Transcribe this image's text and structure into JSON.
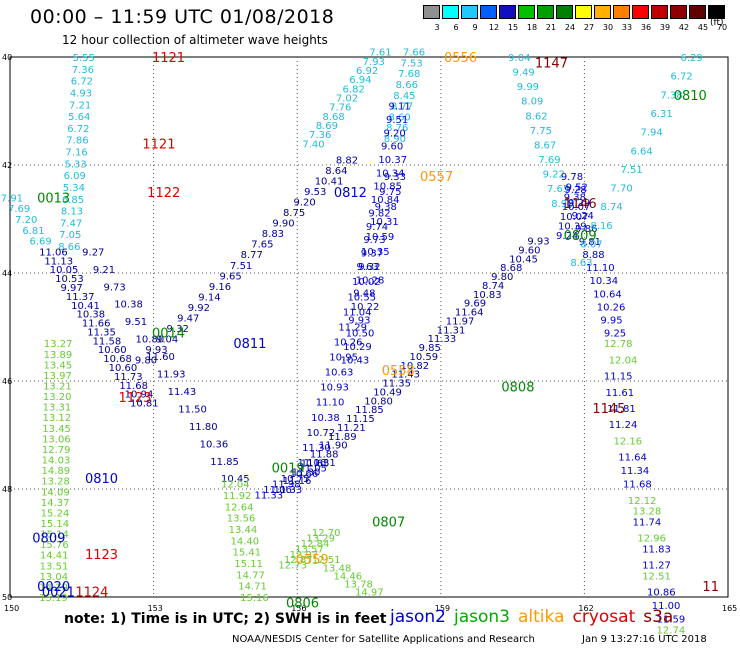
{
  "title": "00:00 – 11:59 UTC 01/08/2018",
  "subtitle": "12 hour collection of altimeter wave heights",
  "scale": {
    "labels": [
      "3",
      "6",
      "9",
      "12",
      "15",
      "18",
      "21",
      "24",
      "27",
      "30",
      "33",
      "36",
      "39",
      "42",
      "45",
      "70"
    ],
    "unit": "(ft)",
    "colors": [
      "#909090",
      "#00ffff",
      "#20c8ff",
      "#0060ff",
      "#1010c0",
      "#00c000",
      "#00a000",
      "#008000",
      "#ffff00",
      "#ffb000",
      "#ff8000",
      "#ff0000",
      "#c00000",
      "#900000",
      "#600000",
      "#000000"
    ]
  },
  "axes": {
    "lon_ticks": [
      "150",
      "153",
      "156",
      "159",
      "162",
      "165"
    ],
    "lat_ticks": [
      "40",
      "42",
      "44",
      "46",
      "48",
      "50"
    ]
  },
  "labels": [
    {
      "t": "1121",
      "lon": 153.3,
      "lat": 40.0,
      "c": "#dd0000"
    },
    {
      "t": "1121",
      "lon": 153.1,
      "lat": 41.6,
      "c": "#dd0000"
    },
    {
      "t": "1122",
      "lon": 153.2,
      "lat": 42.5,
      "c": "#dd0000"
    },
    {
      "t": "0013",
      "lon": 150.9,
      "lat": 42.6,
      "c": "#008800"
    },
    {
      "t": "0014",
      "lon": 153.3,
      "lat": 45.1,
      "c": "#008800"
    },
    {
      "t": "0811",
      "lon": 155.0,
      "lat": 45.3,
      "c": "#0000cc"
    },
    {
      "t": "1123",
      "lon": 152.6,
      "lat": 46.3,
      "c": "#dd0000"
    },
    {
      "t": "0810",
      "lon": 151.9,
      "lat": 47.8,
      "c": "#0000cc"
    },
    {
      "t": "0809",
      "lon": 150.8,
      "lat": 48.9,
      "c": "#0000cc"
    },
    {
      "t": "1123",
      "lon": 151.9,
      "lat": 49.2,
      "c": "#dd0000"
    },
    {
      "t": "0020",
      "lon": 150.9,
      "lat": 49.8,
      "c": "#0000cc"
    },
    {
      "t": "1124",
      "lon": 151.7,
      "lat": 49.9,
      "c": "#dd0000"
    },
    {
      "t": "0021",
      "lon": 151.0,
      "lat": 49.9,
      "c": "#0000cc"
    },
    {
      "t": "0019",
      "lon": 155.8,
      "lat": 47.6,
      "c": "#008800"
    },
    {
      "t": "0806",
      "lon": 156.1,
      "lat": 50.1,
      "c": "#008800"
    },
    {
      "t": "0807",
      "lon": 157.9,
      "lat": 48.6,
      "c": "#008800"
    },
    {
      "t": "0812",
      "lon": 157.1,
      "lat": 42.5,
      "c": "#0000cc"
    },
    {
      "t": "0556",
      "lon": 159.4,
      "lat": 40.0,
      "c": "#ff9900"
    },
    {
      "t": "0557",
      "lon": 158.9,
      "lat": 42.2,
      "c": "#ff9900"
    },
    {
      "t": "0558",
      "lon": 158.1,
      "lat": 45.8,
      "c": "#ff9900"
    },
    {
      "t": "0559",
      "lon": 156.3,
      "lat": 49.3,
      "c": "#ff9900"
    },
    {
      "t": "1147",
      "lon": 161.3,
      "lat": 40.1,
      "c": "#880000"
    },
    {
      "t": "1146",
      "lon": 161.9,
      "lat": 42.7,
      "c": "#880000"
    },
    {
      "t": "1145",
      "lon": 162.5,
      "lat": 46.5,
      "c": "#880000"
    },
    {
      "t": "11",
      "lon": 164.8,
      "lat": 49.8,
      "c": "#880000"
    },
    {
      "t": "0810",
      "lon": 164.2,
      "lat": 40.7,
      "c": "#008800"
    },
    {
      "t": "0809",
      "lon": 161.9,
      "lat": 43.3,
      "c": "#008800"
    },
    {
      "t": "0808",
      "lon": 160.6,
      "lat": 46.1,
      "c": "#008800"
    }
  ],
  "tracks": [
    {
      "c": "#22bbdd",
      "vals": [
        "5.55",
        "7.36",
        "6.72",
        "4.93",
        "7.21",
        "5.64",
        "6.72",
        "7.86",
        "7.16",
        "5.33",
        "6.09",
        "5.34",
        "6.85",
        "8.13",
        "7.47",
        "7.05",
        "8.66"
      ],
      "lon0": 151.6,
      "lat0": 40.0,
      "lon1": 151.3,
      "lat1": 43.5
    },
    {
      "c": "#22bbdd",
      "vals": [
        "7.91",
        "7.69",
        "7.20",
        "6.81",
        "6.69"
      ],
      "lon0": 150.1,
      "lat0": 42.6,
      "lon1": 150.7,
      "lat1": 43.4
    },
    {
      "c": "#000099",
      "vals": [
        "11.06",
        "11.13",
        "10.05",
        "10.53",
        "9.97",
        "11.37",
        "10.41",
        "10.38",
        "11.66",
        "11.35",
        "11.58",
        "10.60",
        "10.68",
        "10.60",
        "11.73",
        "11.68",
        "10.94",
        "10.81"
      ],
      "lon0": 150.9,
      "lat0": 43.6,
      "lon1": 152.8,
      "lat1": 46.4
    },
    {
      "c": "#66cc33",
      "vals": [
        "13.27",
        "13.89",
        "13.45",
        "13.97",
        "13.21",
        "13.20",
        "13.31",
        "13.12",
        "13.45",
        "13.06",
        "12.79",
        "14.03",
        "14.89",
        "13.28",
        "14.09",
        "14.37",
        "15.24",
        "15.14",
        "15.14",
        "15.76",
        "14.41",
        "13.51",
        "13.04",
        "14.19",
        "15.19"
      ],
      "lon0": 151.0,
      "lat0": 45.3,
      "lon1": 150.9,
      "lat1": 50.0
    },
    {
      "c": "#000099",
      "vals": [
        "9.27",
        "9.21",
        "9.73",
        "10.38",
        "9.51",
        "10.80",
        "11.60",
        "11.93",
        "11.43",
        "11.50",
        "11.80",
        "10.36",
        "11.85",
        "10.45"
      ],
      "lon0": 151.8,
      "lat0": 43.6,
      "lon1": 154.7,
      "lat1": 47.8
    },
    {
      "c": "#000099",
      "vals": [
        "9.80",
        "9.93",
        "9.04",
        "9.32",
        "9.47",
        "9.92",
        "9.14",
        "9.16",
        "9.65",
        "7.51",
        "8.77",
        "7.65",
        "8.83",
        "9.90",
        "8.75",
        "9.20",
        "9.53",
        "10.41",
        "8.64",
        "8.82"
      ],
      "lon0": 152.9,
      "lat0": 45.6,
      "lon1": 157.1,
      "lat1": 41.9
    },
    {
      "c": "#22bbdd",
      "vals": [
        "7.40",
        "7.36",
        "8.69",
        "8.68",
        "7.76",
        "7.02",
        "6.82",
        "6.94",
        "6.92",
        "7.93",
        "7.61"
      ],
      "lon0": 156.4,
      "lat0": 41.6,
      "lon1": 157.8,
      "lat1": 39.9
    },
    {
      "c": "#22bbdd",
      "vals": [
        "7.66",
        "7.53",
        "7.68",
        "8.66",
        "8.45",
        "8.77",
        "8.60",
        "8.76",
        "8.90"
      ],
      "lon0": 158.5,
      "lat0": 39.9,
      "lon1": 158.1,
      "lat1": 41.5
    },
    {
      "c": "#0000cc",
      "vals": [
        "9.11",
        "9.51",
        "9.20",
        "9.60",
        "10.37",
        "10.34",
        "10.85",
        "10.84",
        "9.82",
        "9.74",
        "9.73",
        "9.37",
        "9.32",
        "10.28",
        "9.48",
        "10.22",
        "9.93",
        "10.50",
        "10.29",
        "10.43"
      ],
      "lon0": 158.2,
      "lat0": 40.9,
      "lon1": 157.2,
      "lat1": 45.6
    },
    {
      "c": "#0000cc",
      "vals": [
        "9.33",
        "9.75",
        "9.38",
        "10.31",
        "10.59",
        "10.35",
        "9.63",
        "10.02",
        "10.55",
        "11.04",
        "11.29",
        "10.26",
        "10.95",
        "10.63",
        "10.93",
        "11.10",
        "10.38",
        "10.72",
        "11.30",
        "11.06"
      ],
      "lon0": 158.1,
      "lat0": 42.2,
      "lon1": 156.3,
      "lat1": 47.5
    },
    {
      "c": "#0000cc",
      "vals": [
        "11.31",
        "11.05",
        "10.66",
        "10.75",
        "11.98",
        "11.06",
        "11.33"
      ],
      "lon0": 156.5,
      "lat0": 47.5,
      "lon1": 155.4,
      "lat1": 48.1
    },
    {
      "c": "#66cc33",
      "vals": [
        "12.04",
        "11.92",
        "12.64",
        "13.56",
        "13.44",
        "14.40",
        "15.41",
        "15.11",
        "14.77",
        "14.71",
        "15.16"
      ],
      "lon0": 154.7,
      "lat0": 47.9,
      "lon1": 155.1,
      "lat1": 50.0
    },
    {
      "c": "#66cc33",
      "vals": [
        "12.70",
        "13.29",
        "12.84",
        "13.57",
        "12.97",
        "12.87",
        "12.73"
      ],
      "lon0": 156.6,
      "lat0": 48.8,
      "lon1": 155.9,
      "lat1": 49.4
    },
    {
      "c": "#000099",
      "vals": [
        "11.33",
        "11.16",
        "11.30",
        "11.65",
        "11.88",
        "11.90",
        "11.89",
        "11.21",
        "11.15",
        "11.85",
        "10.80",
        "10.49",
        "11.35",
        "11.43",
        "10.82",
        "10.59",
        "9.85",
        "11.33",
        "11.31",
        "11.97",
        "11.64",
        "9.69",
        "10.83",
        "8.74",
        "9.80",
        "8.68",
        "10.45",
        "9.60",
        "9.93"
      ],
      "lon0": 155.8,
      "lat0": 48.0,
      "lon1": 161.1,
      "lat1": 43.4
    },
    {
      "c": "#66cc33",
      "vals": [
        "12.51",
        "13.48",
        "14.46",
        "13.78",
        "14.97"
      ],
      "lon0": 156.6,
      "lat0": 49.3,
      "lon1": 157.5,
      "lat1": 49.9
    },
    {
      "c": "#22bbdd",
      "vals": [
        "9.04",
        "9.49",
        "9.99",
        "8.09",
        "8.62",
        "7.75",
        "8.67",
        "7.69",
        "9.22",
        "7.65",
        "8.98"
      ],
      "lon0": 160.7,
      "lat0": 40.0,
      "lon1": 161.6,
      "lat1": 42.7
    },
    {
      "c": "#0000cc",
      "vals": [
        "9.78",
        "9.28",
        "9.29",
        "9.24",
        "9.86",
        "9.81",
        "8.88",
        "11.10",
        "10.34",
        "10.64",
        "10.26",
        "9.95",
        "9.25"
      ],
      "lon0": 161.8,
      "lat0": 42.2,
      "lon1": 162.7,
      "lat1": 45.1
    },
    {
      "c": "#66cc33",
      "vals": [
        "12.78",
        "12.04"
      ],
      "lon0": 162.7,
      "lat0": 45.3,
      "lon1": 162.8,
      "lat1": 45.6
    },
    {
      "c": "#0000cc",
      "vals": [
        "11.15",
        "11.61",
        "11.81",
        "11.24"
      ],
      "lon0": 162.7,
      "lat0": 45.9,
      "lon1": 162.8,
      "lat1": 46.8
    },
    {
      "c": "#66cc33",
      "vals": [
        "12.16"
      ],
      "lon0": 162.9,
      "lat0": 47.1,
      "lon1": 162.9,
      "lat1": 47.1
    },
    {
      "c": "#0000cc",
      "vals": [
        "11.64",
        "11.34",
        "11.68"
      ],
      "lon0": 163.0,
      "lat0": 47.4,
      "lon1": 163.1,
      "lat1": 47.9
    },
    {
      "c": "#66cc33",
      "vals": [
        "12.12",
        "13.28"
      ],
      "lon0": 163.2,
      "lat0": 48.2,
      "lon1": 163.3,
      "lat1": 48.4
    },
    {
      "c": "#0000cc",
      "vals": [
        "11.74"
      ],
      "lon0": 163.3,
      "lat0": 48.6,
      "lon1": 163.3,
      "lat1": 48.6
    },
    {
      "c": "#66cc33",
      "vals": [
        "12.96"
      ],
      "lon0": 163.4,
      "lat0": 48.9,
      "lon1": 163.4,
      "lat1": 48.9
    },
    {
      "c": "#0000cc",
      "vals": [
        "11.83",
        "11.27"
      ],
      "lon0": 163.5,
      "lat0": 49.1,
      "lon1": 163.5,
      "lat1": 49.4
    },
    {
      "c": "#66cc33",
      "vals": [
        "12.51"
      ],
      "lon0": 163.5,
      "lat0": 49.6,
      "lon1": 163.5,
      "lat1": 49.6
    },
    {
      "c": "#0000cc",
      "vals": [
        "10.86",
        "11.00",
        "11.59"
      ],
      "lon0": 163.6,
      "lat0": 49.9,
      "lon1": 163.8,
      "lat1": 50.4
    },
    {
      "c": "#66cc33",
      "vals": [
        "12.74"
      ],
      "lon0": 163.8,
      "lat0": 50.6,
      "lon1": 163.8,
      "lat1": 50.6
    },
    {
      "c": "#0000cc",
      "vals": [
        "9.52",
        "9.38",
        "10.07",
        "10.07",
        "10.39",
        "9.24"
      ],
      "lon0": 161.9,
      "lat0": 42.4,
      "lon1": 161.7,
      "lat1": 43.3
    },
    {
      "c": "#22bbdd",
      "vals": [
        "6.29",
        "6.72",
        "7.38",
        "6.31",
        "7.94",
        "6.64",
        "7.51",
        "7.70",
        "8.74",
        "8.16",
        "8.07",
        "8.63"
      ],
      "lon0": 164.3,
      "lat0": 40.0,
      "lon1": 162.0,
      "lat1": 43.8
    }
  ],
  "note": "note: 1) Time is in UTC; 2) SWH is in feet",
  "legend": [
    {
      "name": "jason2",
      "c": "#0000cc"
    },
    {
      "name": "jason3",
      "c": "#00aa00"
    },
    {
      "name": "altika",
      "c": "#ff9900"
    },
    {
      "name": "cryosat",
      "c": "#dd0000"
    },
    {
      "name": "s3a",
      "c": "#880000"
    }
  ],
  "credit": "NOAA/NESDIS Center for Satellite Applications and Research",
  "timestamp": "Jan  9 13:27:16 UTC 2018"
}
